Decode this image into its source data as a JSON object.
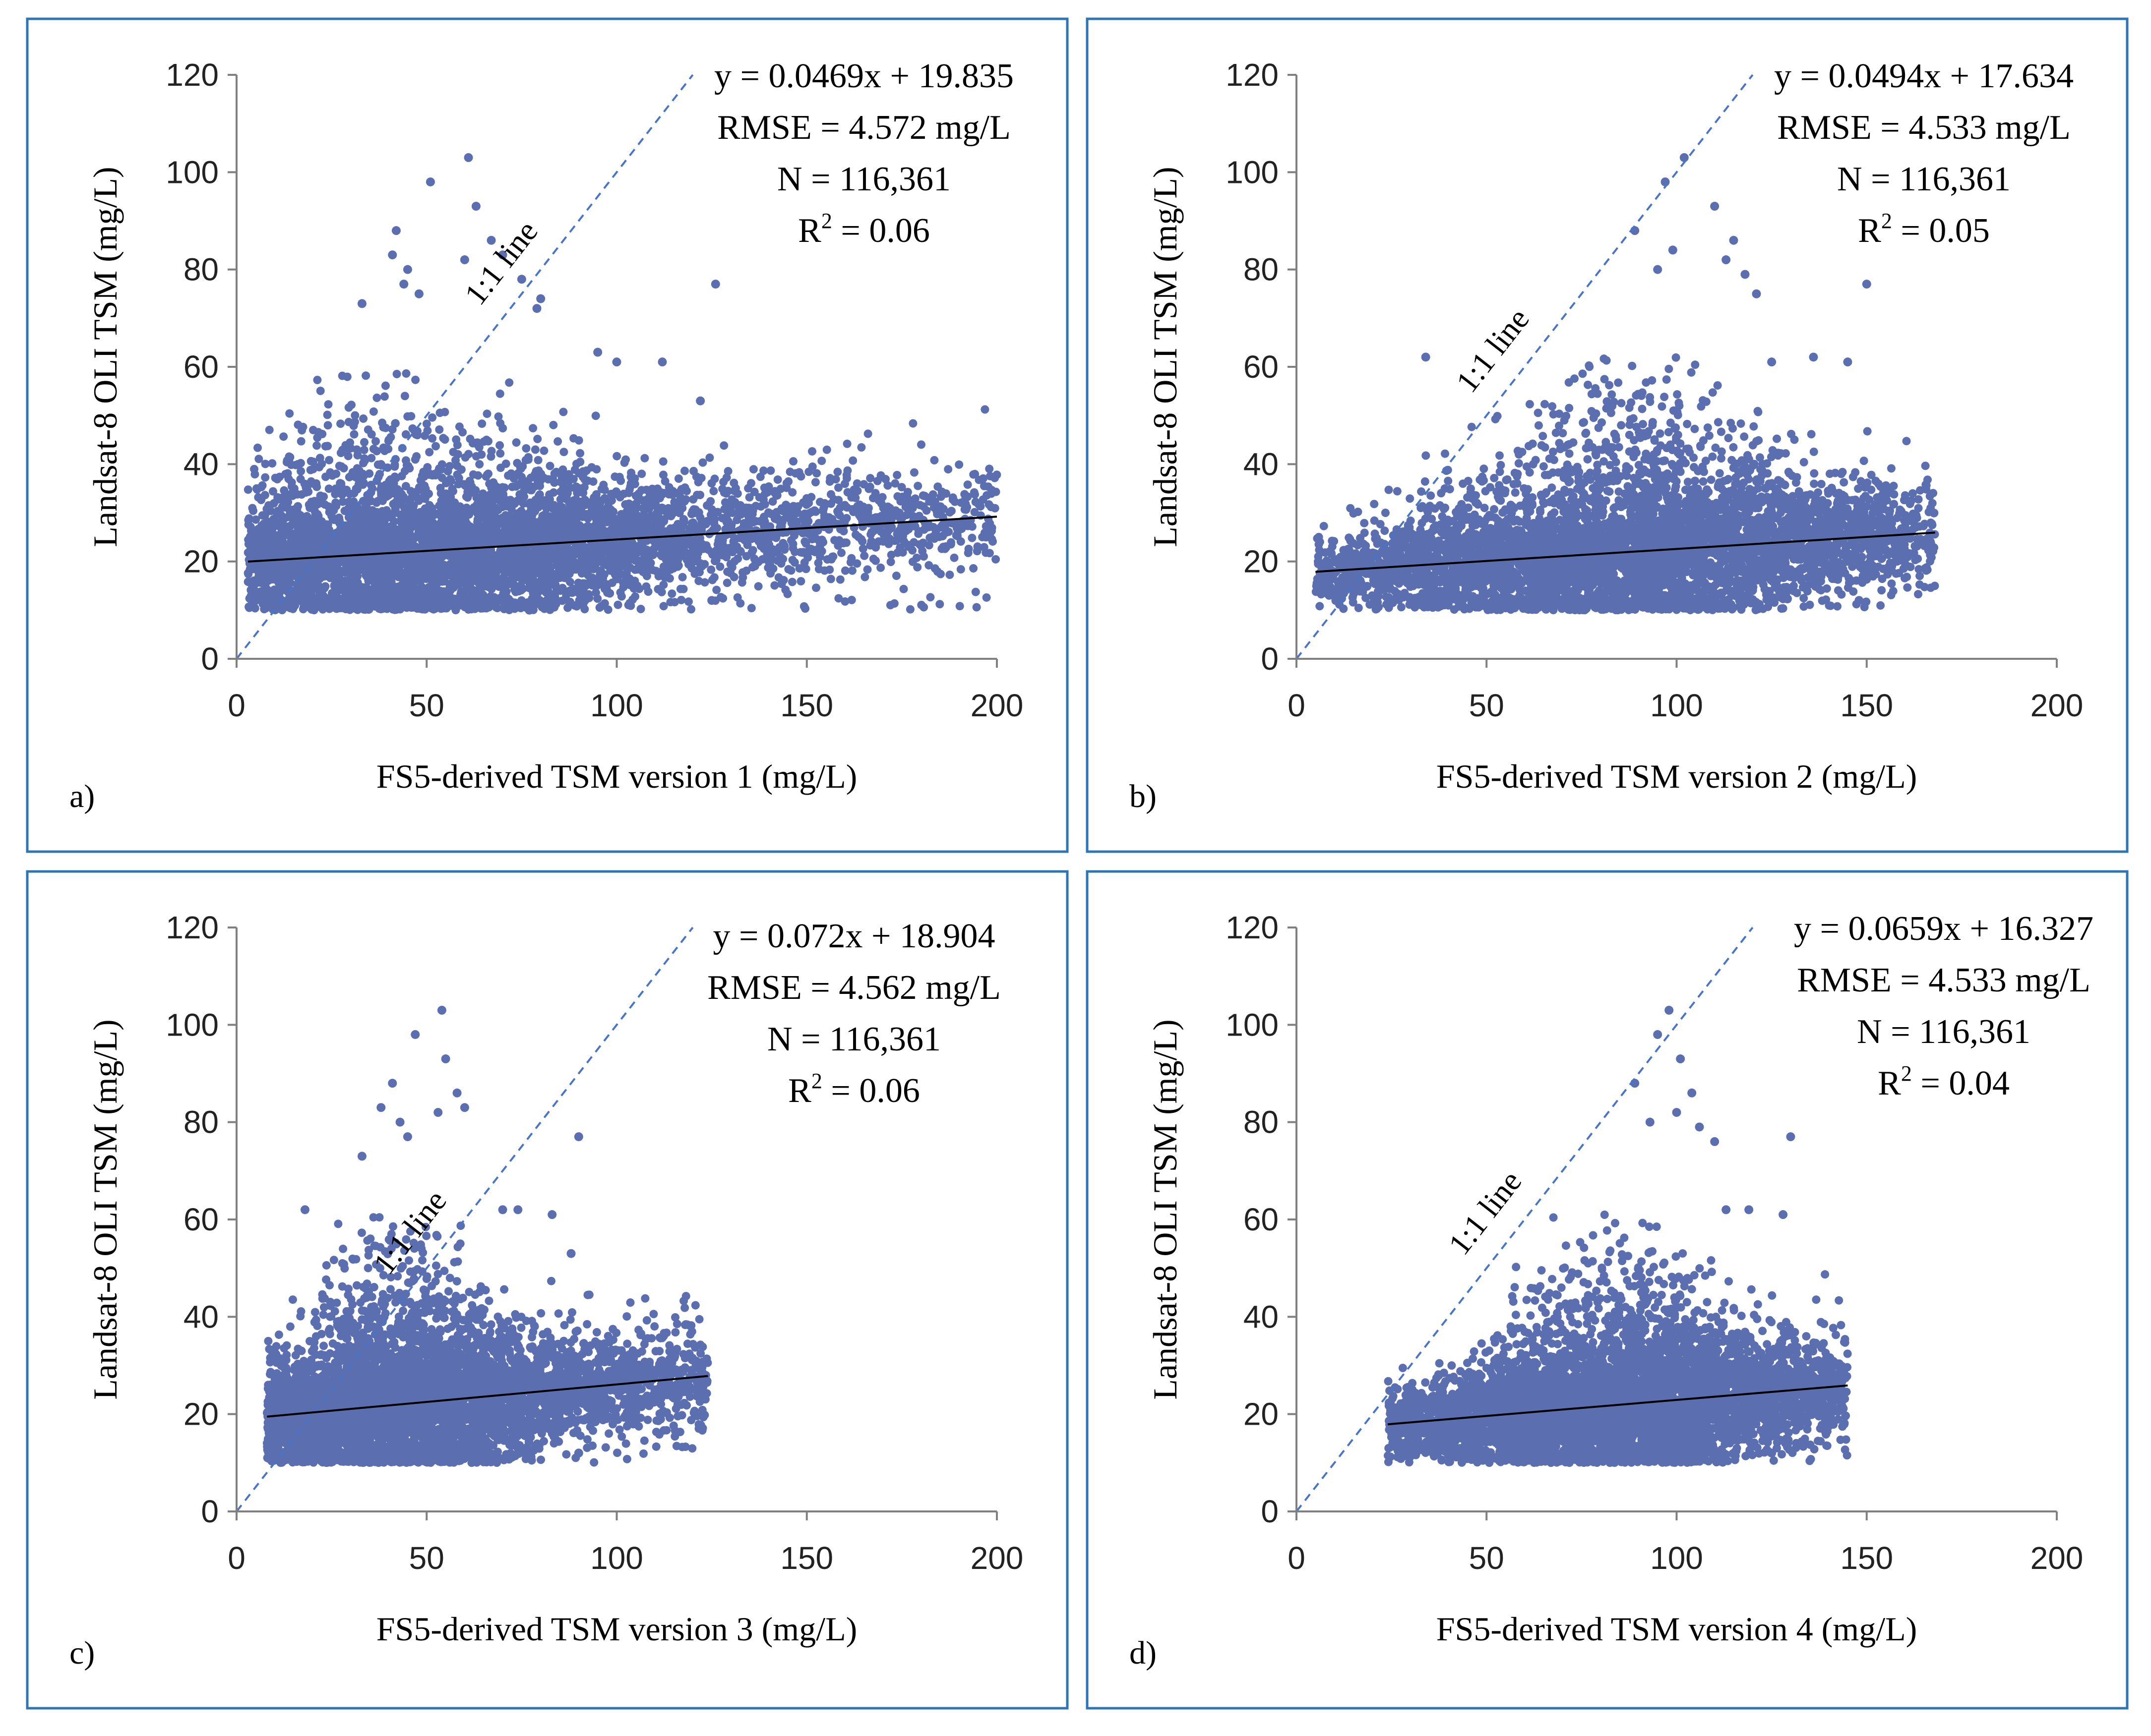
{
  "chart_data": [
    {
      "panel_label": "a)",
      "type": "scatter",
      "xlabel": "FS5-derived TSM version 1 (mg/L)",
      "ylabel": "Landsat-8 OLI TSM (mg/L)",
      "xlim": [
        0,
        200
      ],
      "ylim": [
        0,
        120
      ],
      "xticks": [
        "0",
        "50",
        "100",
        "150",
        "200"
      ],
      "yticks": [
        "0",
        "20",
        "40",
        "60",
        "80",
        "100",
        "120"
      ],
      "equation": "y = 0.0469x + 19.835",
      "rmse": "RMSE = 4.572 mg/L",
      "n": "N = 116,361",
      "r2_prefix": "R",
      "r2_sup": "2",
      "r2_value": " = 0.06",
      "one_one_label": "1:1 line",
      "fit": {
        "slope": 0.0469,
        "intercept": 19.835,
        "x_range": [
          3,
          200
        ]
      },
      "one_one_line": {
        "x_range": [
          0,
          120
        ]
      },
      "point_color": "#5b6fb0",
      "point_cloud": {
        "x_range": [
          3,
          200
        ],
        "dense_peak_x": 45,
        "dense_peak_y_top": 45,
        "y_floor": 10
      },
      "outliers": [
        [
          51,
          98
        ],
        [
          61,
          103
        ],
        [
          63,
          93
        ],
        [
          42,
          88
        ],
        [
          41,
          83
        ],
        [
          45,
          80
        ],
        [
          44,
          77
        ],
        [
          48,
          75
        ],
        [
          33,
          73
        ],
        [
          60,
          82
        ],
        [
          67,
          86
        ],
        [
          70,
          83
        ],
        [
          75,
          78
        ],
        [
          79,
          72
        ],
        [
          80,
          74
        ],
        [
          126,
          77
        ],
        [
          95,
          63
        ],
        [
          100,
          61
        ],
        [
          112,
          61
        ],
        [
          122,
          53
        ],
        [
          125,
          12
        ],
        [
          77,
          10
        ]
      ]
    },
    {
      "panel_label": "b)",
      "type": "scatter",
      "xlabel": "FS5-derived TSM version 2 (mg/L)",
      "ylabel": "Landsat-8 OLI TSM (mg/L)",
      "xlim": [
        0,
        200
      ],
      "ylim": [
        0,
        120
      ],
      "xticks": [
        "0",
        "50",
        "100",
        "150",
        "200"
      ],
      "yticks": [
        "0",
        "20",
        "40",
        "60",
        "80",
        "100",
        "120"
      ],
      "equation": "y = 0.0494x + 17.634",
      "rmse": "RMSE = 4.533 mg/L",
      "n": "N = 116,361",
      "r2_prefix": "R",
      "r2_sup": "2",
      "r2_value": " = 0.05",
      "one_one_label": "1:1 line",
      "fit": {
        "slope": 0.0494,
        "intercept": 17.634,
        "x_range": [
          5,
          168
        ]
      },
      "one_one_line": {
        "x_range": [
          0,
          120
        ]
      },
      "point_color": "#5b6fb0",
      "point_cloud": {
        "x_range": [
          5,
          168
        ],
        "dense_peak_x": 85,
        "dense_peak_y_top": 48,
        "y_floor": 10
      },
      "outliers": [
        [
          102,
          103
        ],
        [
          97,
          98
        ],
        [
          110,
          93
        ],
        [
          115,
          86
        ],
        [
          113,
          82
        ],
        [
          118,
          79
        ],
        [
          121,
          75
        ],
        [
          89,
          88
        ],
        [
          95,
          80
        ],
        [
          99,
          84
        ],
        [
          136,
          62
        ],
        [
          125,
          61
        ],
        [
          150,
          77
        ],
        [
          145,
          61
        ],
        [
          34,
          62
        ],
        [
          148,
          12
        ]
      ]
    },
    {
      "panel_label": "c)",
      "type": "scatter",
      "xlabel": "FS5-derived TSM version 3 (mg/L)",
      "ylabel": "Landsat-8 OLI TSM (mg/L)",
      "xlim": [
        0,
        200
      ],
      "ylim": [
        0,
        120
      ],
      "xticks": [
        "0",
        "50",
        "100",
        "150",
        "200"
      ],
      "yticks": [
        "0",
        "20",
        "40",
        "60",
        "80",
        "100",
        "120"
      ],
      "equation": "y = 0.072x + 18.904",
      "rmse": "RMSE = 4.562 mg/L",
      "n": "N = 116,361",
      "r2_prefix": "R",
      "r2_sup": "2",
      "r2_value": " = 0.06",
      "one_one_label": "1:1 line",
      "fit": {
        "slope": 0.072,
        "intercept": 18.904,
        "x_range": [
          8,
          124
        ]
      },
      "one_one_line": {
        "x_range": [
          0,
          120
        ]
      },
      "point_color": "#5b6fb0",
      "point_cloud": {
        "x_range": [
          8,
          124
        ],
        "dense_peak_x": 42,
        "dense_peak_y_top": 48,
        "y_floor": 10
      },
      "outliers": [
        [
          54,
          103
        ],
        [
          47,
          98
        ],
        [
          55,
          93
        ],
        [
          41,
          88
        ],
        [
          38,
          83
        ],
        [
          43,
          80
        ],
        [
          45,
          77
        ],
        [
          33,
          73
        ],
        [
          53,
          82
        ],
        [
          58,
          86
        ],
        [
          60,
          83
        ],
        [
          90,
          77
        ],
        [
          70,
          62
        ],
        [
          74,
          62
        ],
        [
          83,
          61
        ],
        [
          88,
          53
        ],
        [
          18,
          62
        ],
        [
          90,
          12
        ]
      ]
    },
    {
      "panel_label": "d)",
      "type": "scatter",
      "xlabel": "FS5-derived TSM version 4 (mg/L)",
      "ylabel": "Landsat-8 OLI TSM (mg/L)",
      "xlim": [
        0,
        200
      ],
      "ylim": [
        0,
        120
      ],
      "xticks": [
        "0",
        "50",
        "100",
        "150",
        "200"
      ],
      "yticks": [
        "0",
        "20",
        "40",
        "60",
        "80",
        "100",
        "120"
      ],
      "equation": "y = 0.0659x + 16.327",
      "rmse": "RMSE = 4.533 mg/L",
      "n": "N = 116,361",
      "r2_prefix": "R",
      "r2_sup": "2",
      "r2_value": " = 0.04",
      "one_one_label": "1:1 line",
      "fit": {
        "slope": 0.0659,
        "intercept": 16.327,
        "x_range": [
          24,
          145
        ]
      },
      "one_one_line": {
        "x_range": [
          0,
          120
        ]
      },
      "point_color": "#5b6fb0",
      "point_cloud": {
        "x_range": [
          24,
          145
        ],
        "dense_peak_x": 85,
        "dense_peak_y_top": 47,
        "y_floor": 10
      },
      "outliers": [
        [
          98,
          103
        ],
        [
          95,
          98
        ],
        [
          101,
          93
        ],
        [
          104,
          86
        ],
        [
          100,
          82
        ],
        [
          106,
          79
        ],
        [
          110,
          76
        ],
        [
          89,
          88
        ],
        [
          93,
          80
        ],
        [
          130,
          77
        ],
        [
          113,
          62
        ],
        [
          119,
          62
        ],
        [
          128,
          61
        ],
        [
          125,
          12
        ]
      ]
    }
  ]
}
